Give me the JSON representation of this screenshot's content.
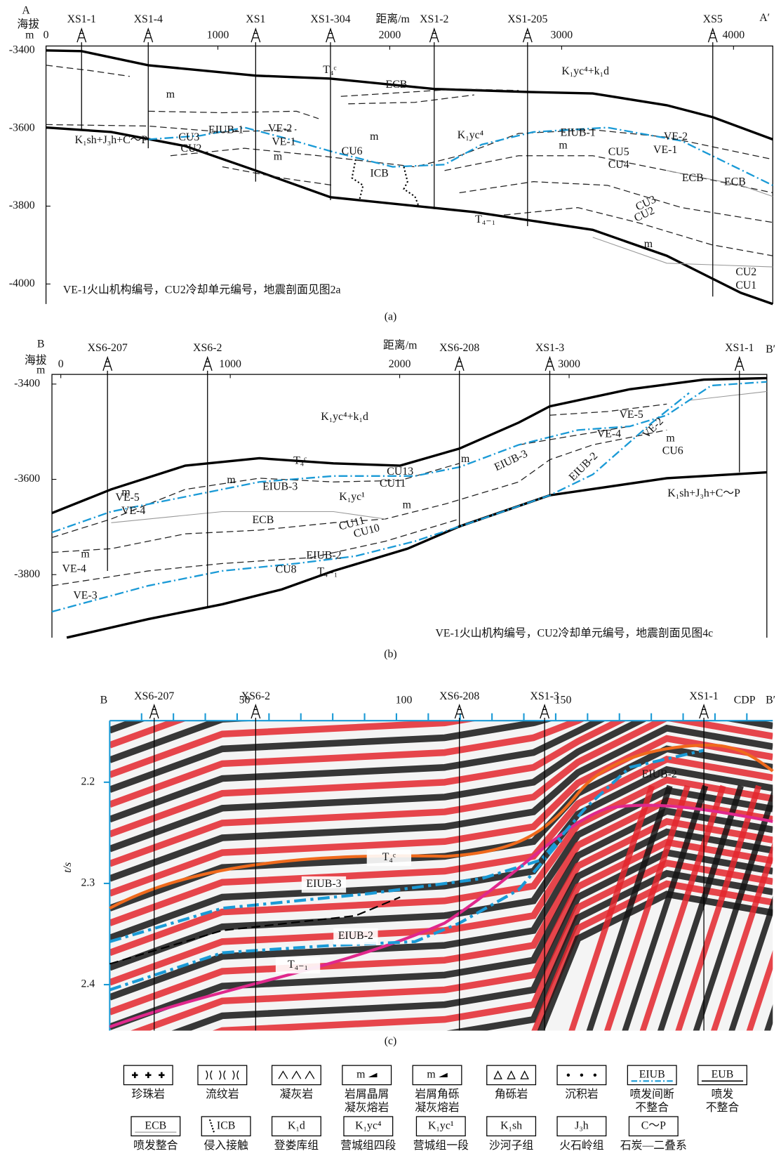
{
  "panel_a": {
    "corner_left": "A",
    "corner_right": "A′",
    "y_label": "海拔",
    "y_unit": "m",
    "x_label": "距离/m",
    "x_ticks": [
      0,
      1000,
      2000,
      3000,
      4000
    ],
    "y_ticks": [
      -3400,
      -3600,
      -3800,
      -4000
    ],
    "wells": [
      "XS1-1",
      "XS1-4",
      "XS1",
      "XS1-304",
      "XS1-2",
      "XS1-205",
      "XS5"
    ],
    "labels": [
      "T₄ᶜ",
      "ECB",
      "K₁yc⁴+k₁d",
      "K₁yc⁴",
      "EIUB-1",
      "VE-2",
      "VE-1",
      "CU5",
      "CU4",
      "ECB",
      "ECB",
      "CU3",
      "CU2",
      "EIUB-1",
      "VE-2",
      "VE-1",
      "CU6",
      "ICB",
      "K₁sh+J₃h+C～P",
      "T₄₋₁",
      "CU3",
      "CU2",
      "CU2",
      "CU1",
      "m",
      "m",
      "m",
      "m",
      "m"
    ],
    "note": "VE-1火山机构编号，CU2冷却单元编号，地震剖面见图2a",
    "caption": "(a)"
  },
  "panel_b": {
    "corner_left": "B",
    "corner_right": "B′",
    "y_label": "海拔",
    "y_unit": "m",
    "x_label": "距离/m",
    "x_ticks": [
      0,
      1000,
      2000,
      3000
    ],
    "y_ticks": [
      -3400,
      -3600,
      -3800
    ],
    "wells": [
      "XS6-207",
      "XS6-2",
      "XS6-208",
      "XS1-3",
      "XS1-1"
    ],
    "labels": [
      "K₁yc⁴+k₁d",
      "T₄ᶜ",
      "CU13",
      "CU11",
      "EIUB-3",
      "K₁yc¹",
      "EIUB-3",
      "EIUB-2",
      "VE-5",
      "VE-4",
      "VE-2",
      "CU6",
      "K₁sh+J₃h+C～P",
      "VE-5",
      "VE-4",
      "ECB",
      "CU11",
      "CU10",
      "EIUB-2",
      "CU8",
      "T₄₋₁",
      "VE-4",
      "VE-3",
      "m",
      "m",
      "m",
      "m",
      "m",
      "m"
    ],
    "note": "VE-1火山机构编号，CU2冷却单元编号，地震剖面见图4c",
    "caption": "(b)"
  },
  "panel_c": {
    "corner_left": "B",
    "corner_right": "B′",
    "x_label": "CDP",
    "y_label": "t/s",
    "x_ticks": [
      50,
      100,
      150
    ],
    "y_ticks": [
      2.2,
      2.3,
      2.4
    ],
    "wells": [
      "XS6-207",
      "XS6-2",
      "XS6-208",
      "XS1-3",
      "XS1-1"
    ],
    "labels": [
      "T₄ᶜ",
      "EIUB-3",
      "EIUB-2",
      "T₄₋₁",
      "EIUB-2"
    ],
    "caption": "(c)"
  },
  "legend": {
    "row1": [
      {
        "symbol": "",
        "label": [
          "珍珠岩"
        ]
      },
      {
        "symbol": "",
        "label": [
          "流纹岩"
        ]
      },
      {
        "symbol": "",
        "label": [
          "凝灰岩"
        ]
      },
      {
        "symbol": "m",
        "label": [
          "岩屑晶屑",
          "凝灰熔岩"
        ]
      },
      {
        "symbol": "m",
        "label": [
          "岩屑角砾",
          "凝灰熔岩"
        ]
      },
      {
        "symbol": "",
        "label": [
          "角砾岩"
        ]
      },
      {
        "symbol": "",
        "label": [
          "沉积岩"
        ]
      },
      {
        "symbol": "EIUB",
        "label": [
          "喷发间断",
          "不整合"
        ]
      },
      {
        "symbol": "EUB",
        "label": [
          "喷发",
          "不整合"
        ]
      }
    ],
    "row2": [
      {
        "symbol": "ECB",
        "label": [
          "喷发整合"
        ]
      },
      {
        "symbol": "ICB",
        "label": [
          "侵入接触"
        ]
      },
      {
        "symbol": "K₁d",
        "label": [
          "登娄库组"
        ]
      },
      {
        "symbol": "K₁yc⁴",
        "label": [
          "营城组四段"
        ]
      },
      {
        "symbol": "K₁yc¹",
        "label": [
          "营城组一段"
        ]
      },
      {
        "symbol": "K₁sh",
        "label": [
          "沙河子组"
        ]
      },
      {
        "symbol": "J₃h",
        "label": [
          "火石岭组"
        ]
      },
      {
        "symbol": "C～P",
        "label": [
          "石炭—二叠系"
        ]
      }
    ]
  }
}
